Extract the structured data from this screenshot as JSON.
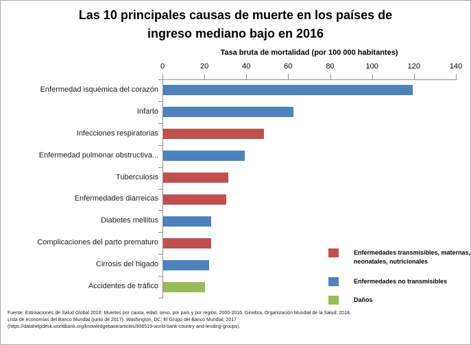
{
  "chart_data": {
    "type": "bar",
    "orientation": "horizontal",
    "title": "Las 10 principales causas de muerte en los países de ingreso mediano bajo en 2016",
    "xlabel": "Tasa bruta de mortalidad (por 100 000 habitantes)",
    "xlim": [
      0,
      140
    ],
    "xticks": [
      0,
      20,
      40,
      60,
      80,
      100,
      120,
      140
    ],
    "grid": false,
    "legend_position": "bottom-right",
    "categories": [
      "Enfermedad isquémica del corazón",
      "Infarto",
      "Infecciones respiratorias",
      "Enfermedad pulmonar obstructiva...",
      "Tuberculosis",
      "Enfermedades diarreicas",
      "Diabetes mellitus",
      "Complicaciones del parto prematuro",
      "Cirrosis del higado",
      "Accidentes de tráfico"
    ],
    "values": [
      119,
      62,
      48,
      39,
      31,
      30,
      23,
      23,
      22,
      20
    ],
    "groups": [
      1,
      1,
      0,
      1,
      0,
      0,
      1,
      0,
      1,
      2
    ],
    "legend": [
      {
        "label": "Enfermedades transmisibles, maternas, neonatales, nutricionales",
        "color": "#C0504D"
      },
      {
        "label": "Enfermedades no transmisibles",
        "color": "#4F81BD"
      },
      {
        "label": "Daños",
        "color": "#9BBB59"
      }
    ]
  },
  "colors": {
    "communicable": "#C0504D",
    "noncommunicable": "#4F81BD",
    "injury": "#9BBB59",
    "axis": "#8c8c8c"
  },
  "footer": {
    "lines": [
      "Fuente: Estimaciones de Salud Global 2016: Muertes por causa, edad, sexo, por país y por región, 2000-2016. Ginebra, Organización Mundial de la Salud; 2018.",
      "Lista de economías del Banco Mundial (junio de 2017). Washington, DC: El Grupo del Banco Mundial; 2017",
      "(https://datahelpdesk.worldbank.org/knowledgebase/articles/906519-world-bank-country-and-lending-groups)."
    ]
  }
}
